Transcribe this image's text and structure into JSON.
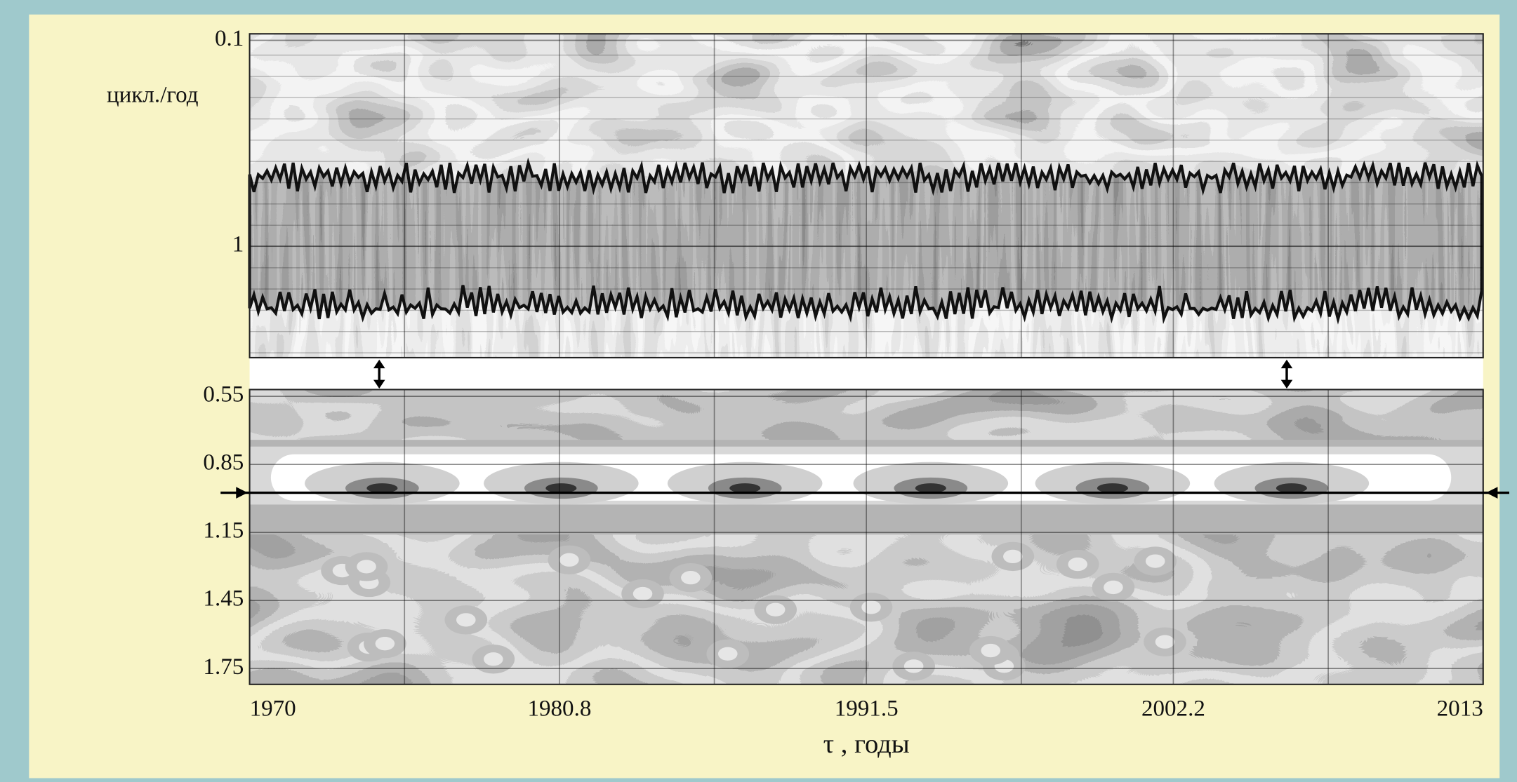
{
  "chart_data": [
    {
      "type": "heatmap",
      "ylabel": "цикл./год",
      "ylim": [
        0.093,
        3.48
      ],
      "y_log": true,
      "y_reversed": true,
      "yticks": [
        0.1,
        1
      ]
    },
    {
      "type": "heatmap",
      "ylim": [
        0.52,
        1.82
      ],
      "y_log": false,
      "y_reversed": true,
      "yticks": [
        0.55,
        0.85,
        1.15,
        1.45,
        1.75
      ],
      "xlim": [
        1970,
        2013
      ],
      "xticks": [
        1970,
        1980.8,
        1991.5,
        2002.2,
        2013
      ],
      "xgrid": [
        1975.4,
        1986.2,
        1996.9,
        2007.6
      ],
      "xlabel": "τ , годы",
      "reference_line": 0.975
    }
  ]
}
